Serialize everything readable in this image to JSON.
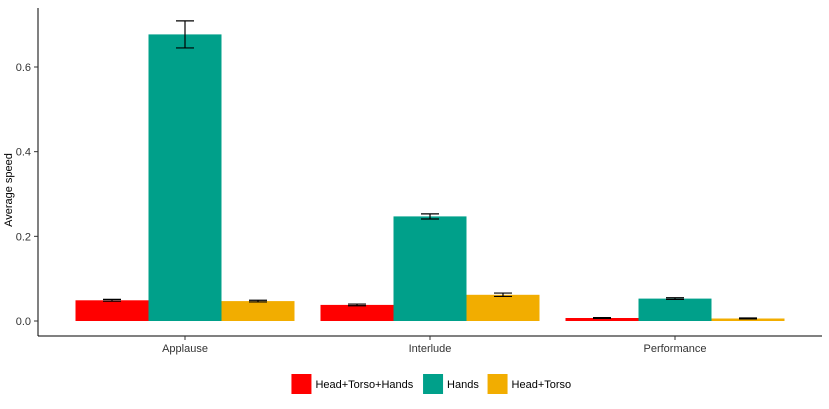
{
  "chart_data": {
    "type": "bar",
    "title": "",
    "xlabel": "",
    "ylabel": "Average speed",
    "ylim": [
      0,
      0.72
    ],
    "yticks": [
      0.0,
      0.2,
      0.4,
      0.6
    ],
    "ytick_labels": [
      "0.0",
      "0.2",
      "0.4",
      "0.6"
    ],
    "categories": [
      "Applause",
      "Interlude",
      "Performance"
    ],
    "series": [
      {
        "name": "Head+Torso+Hands",
        "color": "#ff0000",
        "values": [
          0.049,
          0.038,
          0.007
        ],
        "errors": [
          0.002,
          0.002,
          0.001
        ]
      },
      {
        "name": "Hands",
        "color": "#00a08a",
        "values": [
          0.677,
          0.247,
          0.053
        ],
        "errors": [
          0.032,
          0.006,
          0.002
        ]
      },
      {
        "name": "Head+Torso",
        "color": "#f2ad00",
        "values": [
          0.047,
          0.062,
          0.006
        ],
        "errors": [
          0.002,
          0.004,
          0.001
        ]
      }
    ],
    "grid": false,
    "legend_position": "bottom",
    "error_bars": true
  }
}
